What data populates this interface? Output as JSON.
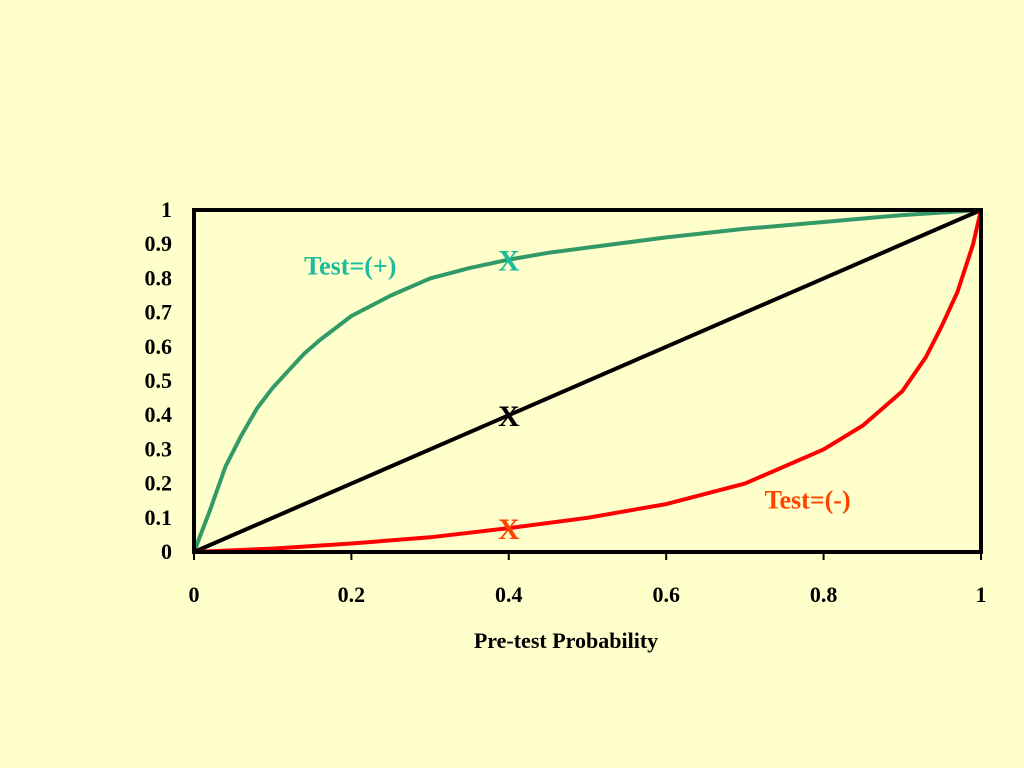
{
  "chart_data": {
    "type": "line",
    "title": "",
    "xlabel": "Pre-test Probability",
    "ylabel": "",
    "xlim": [
      0,
      1
    ],
    "ylim": [
      0,
      1
    ],
    "grid": false,
    "legend": "none",
    "x_ticks": [
      "0",
      "0.2",
      "0.4",
      "0.6",
      "0.8",
      "1"
    ],
    "y_ticks": [
      "0",
      "0.1",
      "0.2",
      "0.3",
      "0.4",
      "0.5",
      "0.6",
      "0.7",
      "0.8",
      "0.9",
      "1"
    ],
    "series": [
      {
        "color": "#339966",
        "x": [
          0,
          0.02,
          0.04,
          0.06,
          0.08,
          0.1,
          0.12,
          0.14,
          0.16,
          0.2,
          0.25,
          0.3,
          0.35,
          0.4,
          0.45,
          0.5,
          0.6,
          0.7,
          0.8,
          0.9,
          1.0
        ],
        "y": [
          0,
          0.12,
          0.25,
          0.34,
          0.42,
          0.48,
          0.53,
          0.58,
          0.62,
          0.69,
          0.75,
          0.8,
          0.83,
          0.855,
          0.875,
          0.89,
          0.92,
          0.945,
          0.965,
          0.985,
          1.0
        ]
      },
      {
        "color": "#000000",
        "x": [
          0,
          0.2,
          0.4,
          0.6,
          0.8,
          1.0
        ],
        "y": [
          0,
          0.2,
          0.4,
          0.6,
          0.8,
          1.0
        ]
      },
      {
        "color": "#FF0000",
        "x": [
          0,
          0.1,
          0.2,
          0.3,
          0.4,
          0.5,
          0.6,
          0.7,
          0.8,
          0.85,
          0.9,
          0.93,
          0.95,
          0.97,
          0.99,
          1.0
        ],
        "y": [
          0,
          0.01,
          0.025,
          0.043,
          0.07,
          0.1,
          0.14,
          0.2,
          0.3,
          0.37,
          0.47,
          0.57,
          0.66,
          0.76,
          0.9,
          1.0
        ]
      }
    ],
    "annotations": [
      {
        "text": "Test=(+)",
        "color": "#1ABC9C",
        "x": 0.14,
        "y": 0.835,
        "kind": "label"
      },
      {
        "text": "X",
        "color": "#1ABC9C",
        "x": 0.4,
        "y": 0.855,
        "kind": "marker"
      },
      {
        "text": "X",
        "color": "#000000",
        "x": 0.4,
        "y": 0.4,
        "kind": "marker"
      },
      {
        "text": "X",
        "color": "#FF4400",
        "x": 0.4,
        "y": 0.07,
        "kind": "marker"
      },
      {
        "text": "Test=(-)",
        "color": "#FF4400",
        "x": 0.725,
        "y": 0.15,
        "kind": "label"
      }
    ]
  }
}
